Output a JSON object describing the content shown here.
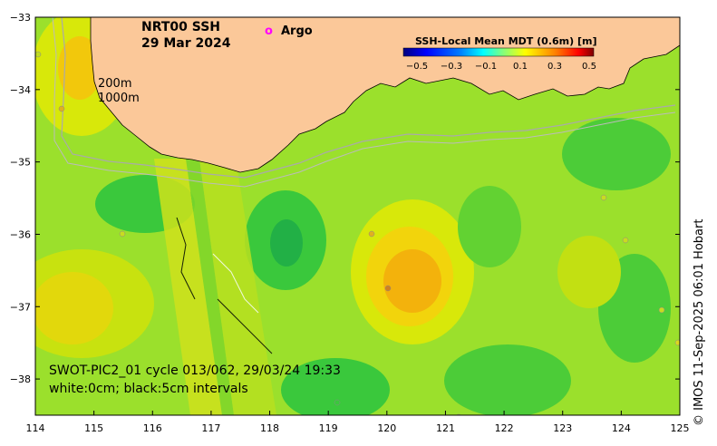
{
  "map": {
    "title_line1": "NRT00 SSH",
    "title_line2": "29 Mar 2024",
    "argo_marker": "o",
    "argo_label": "Argo",
    "isobath_200": "200m",
    "isobath_1000": "1000m",
    "swath_caption": "SWOT-PIC2_01 cycle 013/062, 29/03/24 19:33",
    "contour_caption": "white:0cm; black:5cm intervals",
    "credit": "© IMOS 11-Sep-2025 06:01 Hobart"
  },
  "colorbar": {
    "title": "SSH-Local Mean MDT (0.6m) [m]",
    "tick_labels": [
      "−0.5",
      "−0.3",
      "−0.1",
      "0.1",
      "0.3",
      "0.5"
    ],
    "range": [
      -0.5,
      0.5
    ],
    "colors": [
      "#00007f",
      "#0000ff",
      "#007fff",
      "#00ffff",
      "#7fff7f",
      "#ffff00",
      "#ff7f00",
      "#ff0000",
      "#7f0000"
    ]
  },
  "axes": {
    "x_ticks": [
      "114",
      "115",
      "116",
      "117",
      "118",
      "119",
      "120",
      "121",
      "122",
      "123",
      "124",
      "125"
    ],
    "y_ticks": [
      "−33",
      "−34",
      "−35",
      "−36",
      "−37",
      "−38"
    ],
    "lon_range": [
      114,
      125
    ],
    "lat_range": [
      -38.5,
      -33
    ]
  },
  "colors": {
    "land": "#fbc899",
    "sea_base": "#9be02c",
    "argo": "#ff00ff"
  }
}
